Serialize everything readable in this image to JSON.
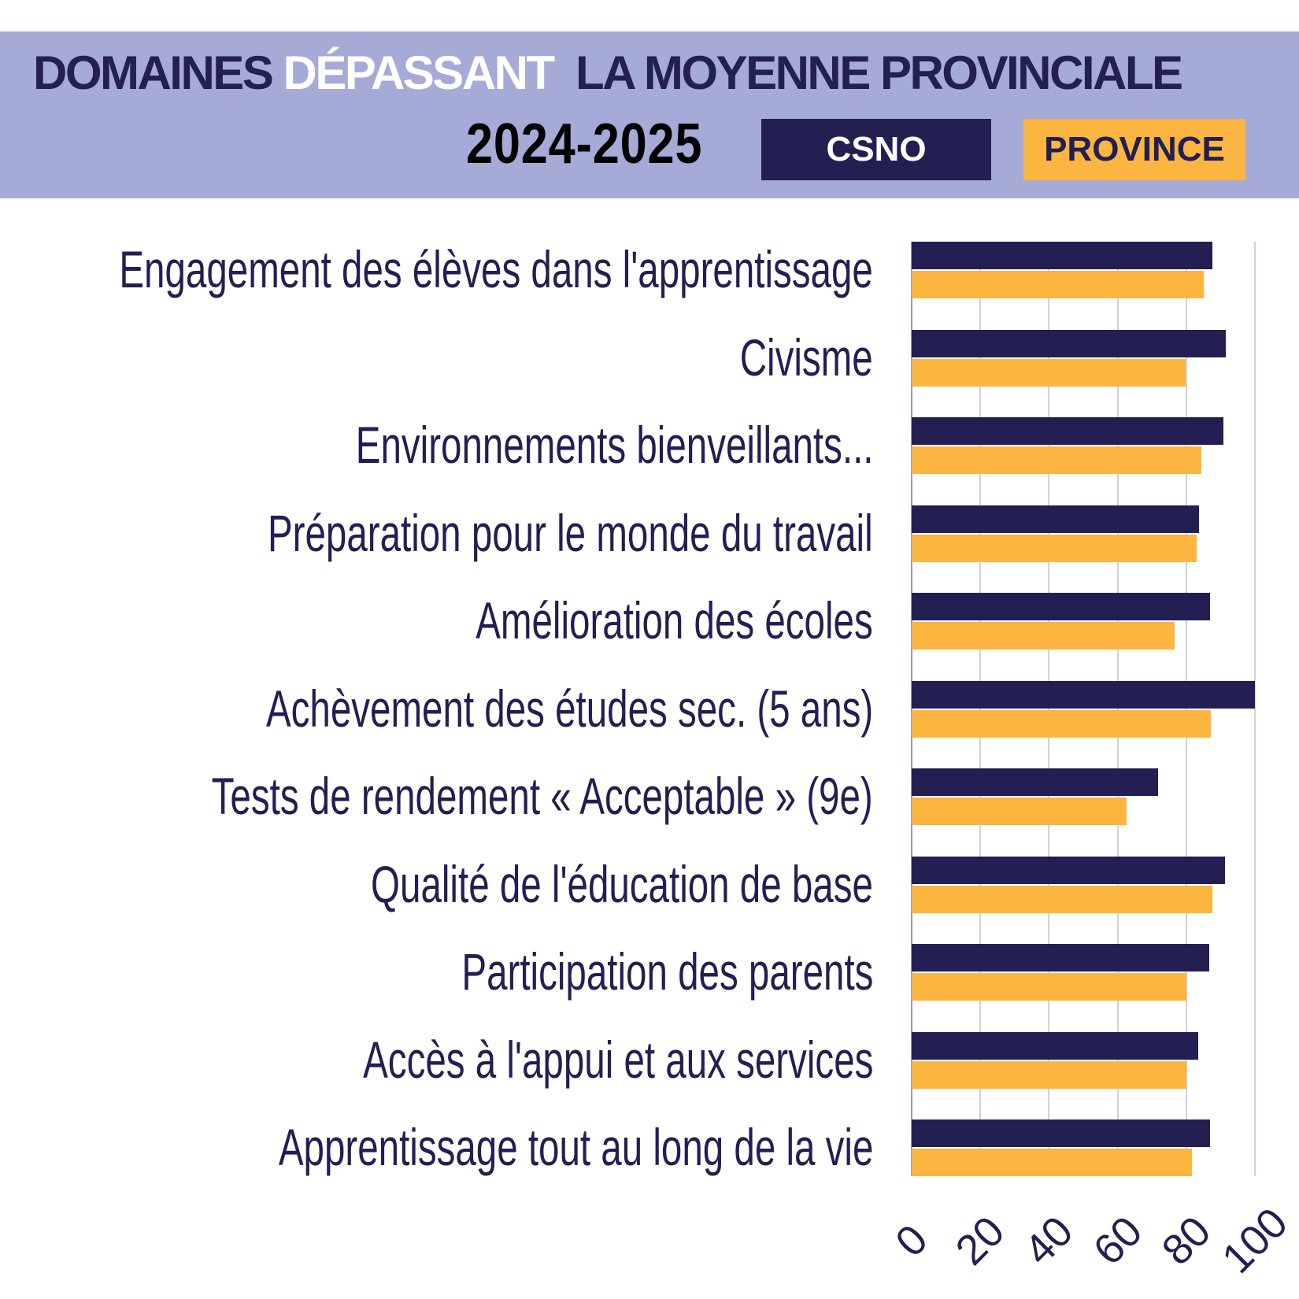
{
  "header": {
    "title_part1": "DOMAINES ",
    "title_highlight": "DÉPASSANT",
    "title_part2": "  LA MOYENNE PROVINCIALE",
    "year": "2024-2025",
    "legend_csno": "CSNO",
    "legend_province": "PROVINCE"
  },
  "colors": {
    "csno": "#231f52",
    "province": "#fbb540",
    "header_bg": "#a5aad6",
    "grid": "#cfd0df"
  },
  "chart_data": {
    "type": "bar",
    "orientation": "horizontal",
    "title": "DOMAINES DÉPASSANT LA MOYENNE PROVINCIALE 2024-2025",
    "categories": [
      "Engagement des élèves dans l'apprentissage",
      "Civisme",
      "Environnements bienveillants...",
      "Préparation pour le monde du travail",
      "Amélioration des écoles",
      "Achèvement des études sec. (5 ans)",
      "Tests de rendement « Acceptable » (9e)",
      "Qualité de l'éducation de base",
      "Participation des parents",
      "Accès à l'appui et aux services",
      "Apprentissage tout au long de la vie"
    ],
    "series": [
      {
        "name": "CSNO",
        "values": [
          87.5,
          91.5,
          90.8,
          83.8,
          87.0,
          100.0,
          71.9,
          91.3,
          86.8,
          83.4,
          87.0
        ]
      },
      {
        "name": "PROVINCE",
        "values": [
          85.0,
          79.9,
          84.5,
          83.0,
          76.7,
          87.2,
          62.5,
          87.6,
          80.1,
          80.1,
          81.7
        ]
      }
    ],
    "xlim": [
      0,
      100
    ],
    "xticks": [
      "0",
      "20",
      "40",
      "60",
      "80",
      "100"
    ],
    "grid": true,
    "legend": "top"
  }
}
